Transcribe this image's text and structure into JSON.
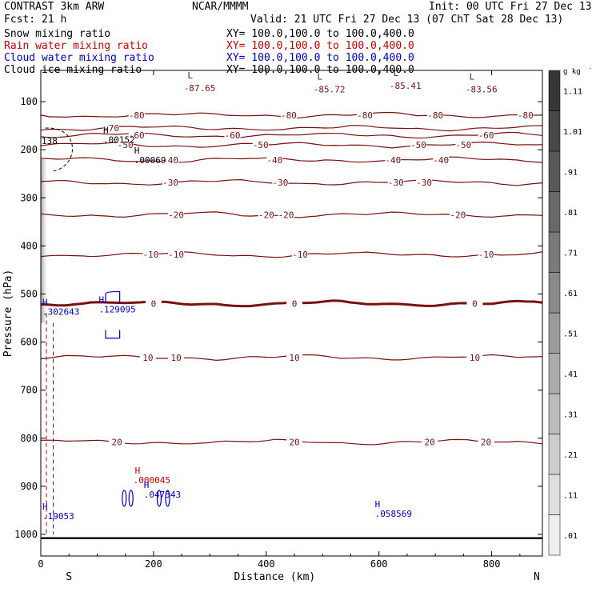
{
  "header": {
    "model": "CONTRAST  3km ARW",
    "org": "NCAR/MMMM",
    "init": "Init: 00 UTC Fri 27 Dec 13",
    "fcst": "Fcst:    21 h",
    "valid": "Valid: 21 UTC Fri 27 Dec 13 (07 ChT Sat 28 Dec 13)",
    "fields": [
      {
        "name": "Snow mixing ratio",
        "xy": "XY= 100.0,100.0 to 100.0,400.0",
        "color": "#000000"
      },
      {
        "name": "Rain water mixing ratio",
        "xy": "XY= 100.0,100.0 to 100.0,400.0",
        "color": "#cc0000"
      },
      {
        "name": "Cloud water mixing ratio",
        "xy": "XY= 100.0,100.0 to 100.0,400.0",
        "color": "#0000cc"
      },
      {
        "name": "Cloud ice mixing ratio",
        "xy": "XY= 100.0,100.0 to 100.0,400.0",
        "color": "#000000"
      }
    ]
  },
  "chart_data": {
    "type": "cross-section contour",
    "xlabel": "Distance (km)",
    "ylabel": "Pressure (hPa)",
    "xlim": [
      0,
      890
    ],
    "ylim": [
      1045,
      35
    ],
    "xticks": [
      0,
      200,
      400,
      600,
      800
    ],
    "yticks": [
      100,
      200,
      300,
      400,
      500,
      600,
      700,
      800,
      900,
      1000
    ],
    "end_labels": {
      "left": "S",
      "right": "N"
    },
    "colorbar": {
      "unit": "g kg",
      "unit_exp": "-1",
      "labels": [
        ".01",
        ".11",
        ".21",
        ".31",
        ".41",
        ".51",
        ".61",
        ".71",
        ".81",
        ".91",
        "1.01",
        "1.11"
      ]
    },
    "temperature_contours": [
      {
        "value": -80,
        "p": 128,
        "labels": [
          [
            170,
            "-80"
          ],
          [
            440,
            "-80"
          ],
          [
            575,
            "-80"
          ],
          [
            700,
            "-80"
          ],
          [
            860,
            "-80"
          ]
        ]
      },
      {
        "value": -70,
        "p": 155,
        "labels": [
          [
            125,
            "-70"
          ]
        ]
      },
      {
        "value": -60,
        "p": 170,
        "labels": [
          [
            170,
            "-60"
          ],
          [
            340,
            "-60"
          ],
          [
            790,
            "-60"
          ]
        ]
      },
      {
        "value": -50,
        "p": 190,
        "labels": [
          [
            150,
            "-50"
          ],
          [
            390,
            "-50"
          ],
          [
            670,
            "-50"
          ],
          [
            750,
            "-50"
          ]
        ]
      },
      {
        "value": -40,
        "p": 221,
        "labels": [
          [
            230,
            "-40"
          ],
          [
            415,
            "-40"
          ],
          [
            625,
            "-40"
          ],
          [
            710,
            "-40"
          ]
        ]
      },
      {
        "value": -30,
        "p": 268,
        "labels": [
          [
            230,
            "-30"
          ],
          [
            425,
            "-30"
          ],
          [
            630,
            "-30"
          ],
          [
            680,
            "-30"
          ]
        ]
      },
      {
        "value": -20,
        "p": 335,
        "labels": [
          [
            240,
            "-20"
          ],
          [
            400,
            "-20"
          ],
          [
            435,
            "-20"
          ],
          [
            740,
            "-20"
          ]
        ]
      },
      {
        "value": -10,
        "p": 418,
        "labels": [
          [
            195,
            "-10"
          ],
          [
            240,
            "-10"
          ],
          [
            460,
            "-10"
          ],
          [
            790,
            "-10"
          ]
        ]
      },
      {
        "value": 0,
        "p": 520,
        "labels": [
          [
            200,
            "0"
          ],
          [
            450,
            "0"
          ],
          [
            770,
            "0"
          ]
        ]
      },
      {
        "value": 10,
        "p": 632,
        "labels": [
          [
            190,
            "10"
          ],
          [
            240,
            "10"
          ],
          [
            450,
            "10"
          ],
          [
            770,
            "10"
          ]
        ]
      },
      {
        "value": 20,
        "p": 808,
        "labels": [
          [
            135,
            "20"
          ],
          [
            450,
            "20"
          ],
          [
            690,
            "20"
          ],
          [
            790,
            "20"
          ]
        ]
      }
    ],
    "low_centers": [
      {
        "x": 265,
        "p": 62,
        "value": "-87.65"
      },
      {
        "x": 495,
        "p": 64,
        "value": "-85.72"
      },
      {
        "x": 630,
        "p": 57,
        "value": "-85.41"
      },
      {
        "x": 765,
        "p": 64,
        "value": "-83.56"
      }
    ],
    "snow_highs": [
      {
        "x": 105,
        "p": 172,
        "value": ".00152"
      },
      {
        "x": 160,
        "p": 215,
        "value": ".00069"
      }
    ],
    "left_edge_value": "138",
    "rain_highs": [
      {
        "x": 167,
        "p": 880,
        "value": ".000045"
      }
    ],
    "cloud_water_highs": [
      {
        "x": 0,
        "p": 530,
        "value": ".302643"
      },
      {
        "x": 100,
        "p": 525,
        "value": ".129095"
      },
      {
        "x": 180,
        "p": 910,
        "value": ".047343"
      },
      {
        "x": 590,
        "p": 950,
        "value": ".058569"
      },
      {
        "x": 0,
        "p": 955,
        "value": ".19053"
      }
    ],
    "center_marker": "H",
    "low_marker": "L"
  }
}
